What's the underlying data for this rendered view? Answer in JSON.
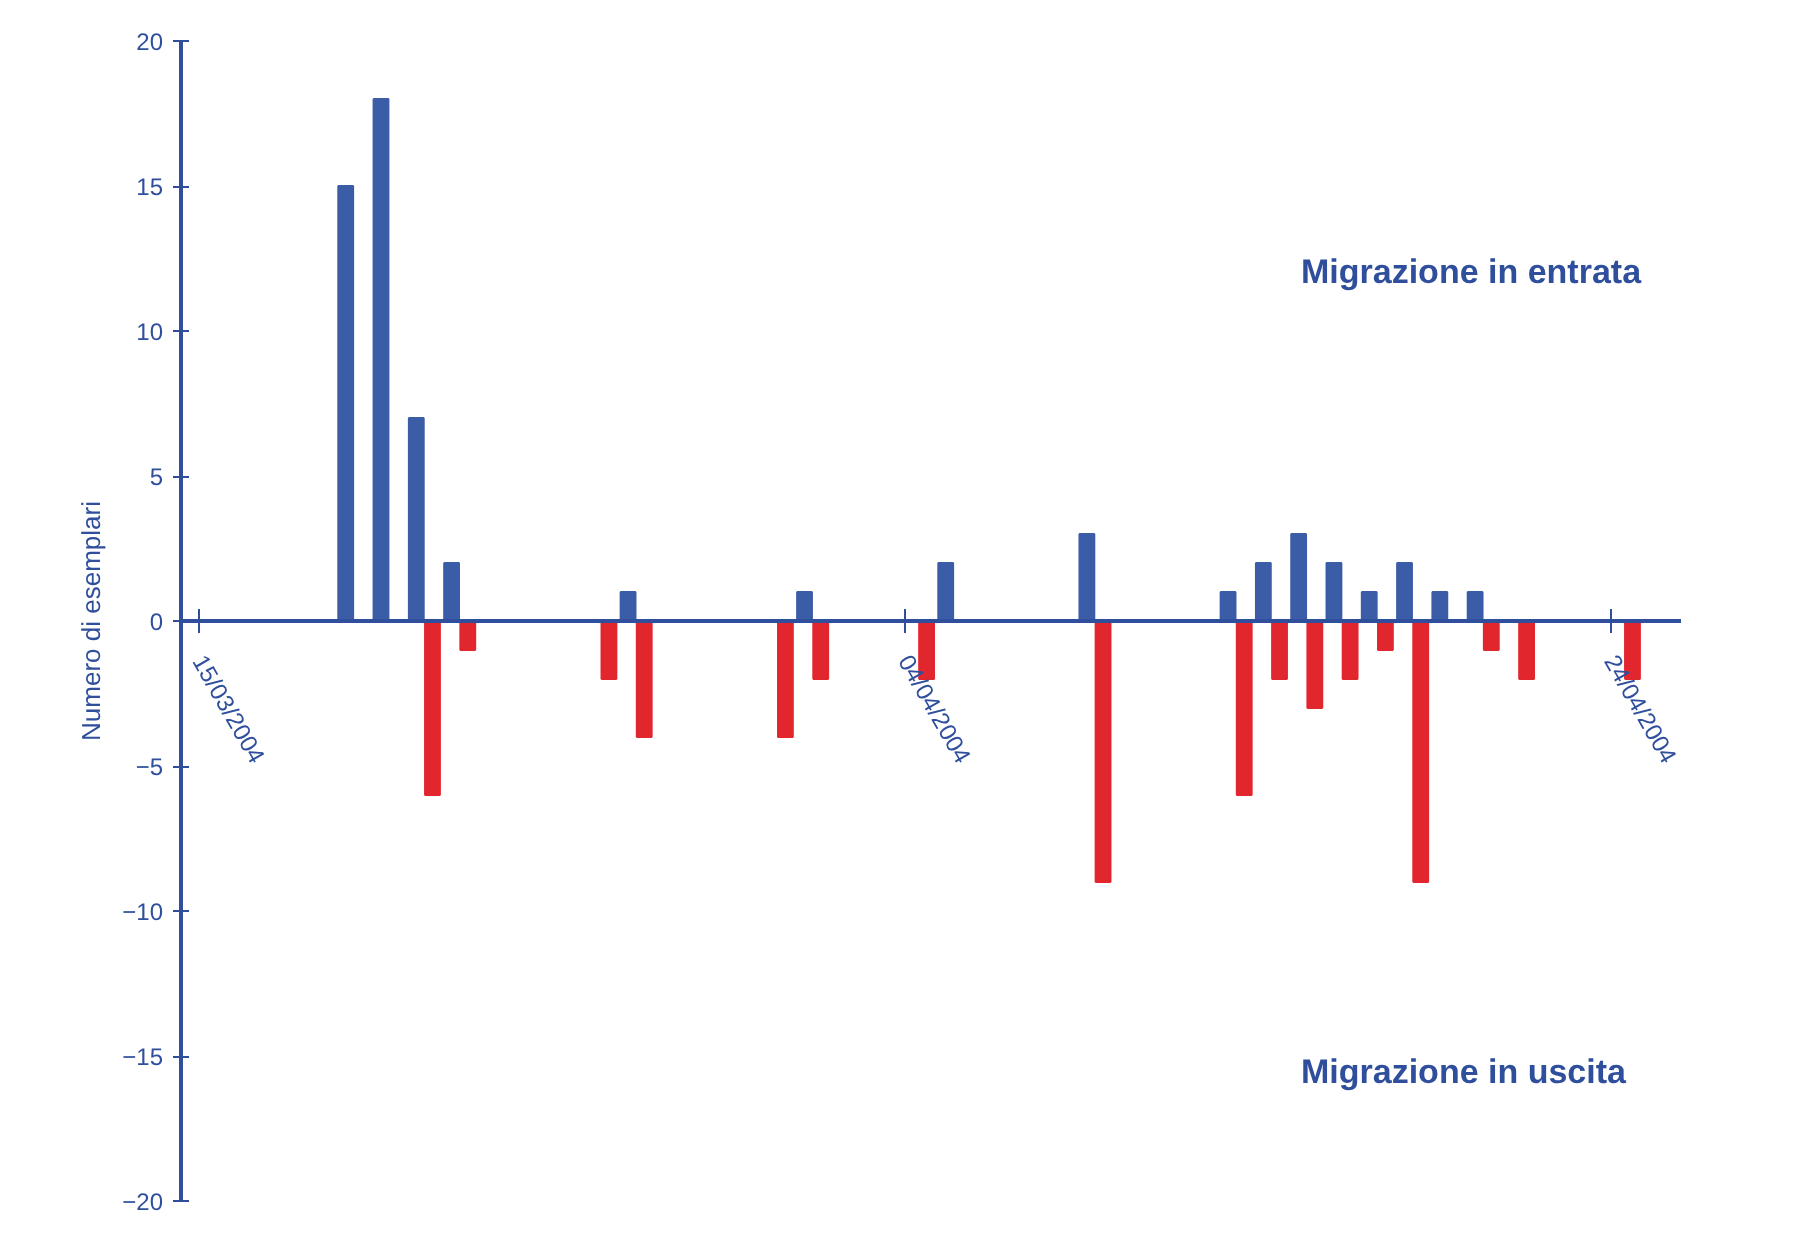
{
  "chart_data": {
    "type": "bar",
    "ylabel": "Numero di esemplari",
    "annotations": [
      "Migrazione in entrata",
      "Migrazione in uscita"
    ],
    "xlim": [
      "2004-03-14T12:00",
      "2004-04-26"
    ],
    "xticks": [
      {
        "value": "2004-03-15",
        "label": "15/03/2004"
      },
      {
        "value": "2004-04-04",
        "label": "04/04/2004"
      },
      {
        "value": "2004-04-24",
        "label": "24/04/2004"
      }
    ],
    "ylim": [
      -20,
      20
    ],
    "yticks": [
      -20,
      -15,
      -10,
      -5,
      0,
      5,
      10,
      15,
      20
    ],
    "grid": false,
    "series": [
      {
        "color": "#3b5ca6",
        "x": [
          "2004-03-19T04:00",
          "2004-03-20T04:00",
          "2004-03-21T04:00",
          "2004-03-22T04:00",
          "2004-03-27T04:00",
          "2004-04-01T04:00",
          "2004-04-05T04:00",
          "2004-04-09T04:00",
          "2004-04-13T04:00",
          "2004-04-14T04:00",
          "2004-04-15T04:00",
          "2004-04-16T04:00",
          "2004-04-17T04:00",
          "2004-04-18T04:00",
          "2004-04-19T04:00",
          "2004-04-20T04:00"
        ],
        "values": [
          15,
          18,
          7,
          2,
          1,
          1,
          2,
          3,
          1,
          2,
          3,
          2,
          1,
          2,
          1,
          1
        ]
      },
      {
        "color": "#e2262e",
        "x": [
          "2004-03-21T15:00",
          "2004-03-22T15:00",
          "2004-03-26T15:00",
          "2004-03-27T15:00",
          "2004-03-31T15:00",
          "2004-04-01T15:00",
          "2004-04-04T15:00",
          "2004-04-09T15:00",
          "2004-04-13T15:00",
          "2004-04-14T15:00",
          "2004-04-15T15:00",
          "2004-04-16T15:00",
          "2004-04-17T15:00",
          "2004-04-18T15:00",
          "2004-04-20T15:00",
          "2004-04-21T15:00",
          "2004-04-24T15:00"
        ],
        "values": [
          -6,
          -1,
          -2,
          -4,
          -4,
          -2,
          -2,
          -9,
          -6,
          -2,
          -3,
          -2,
          -1,
          -9,
          -1,
          -2,
          -2
        ]
      }
    ]
  }
}
